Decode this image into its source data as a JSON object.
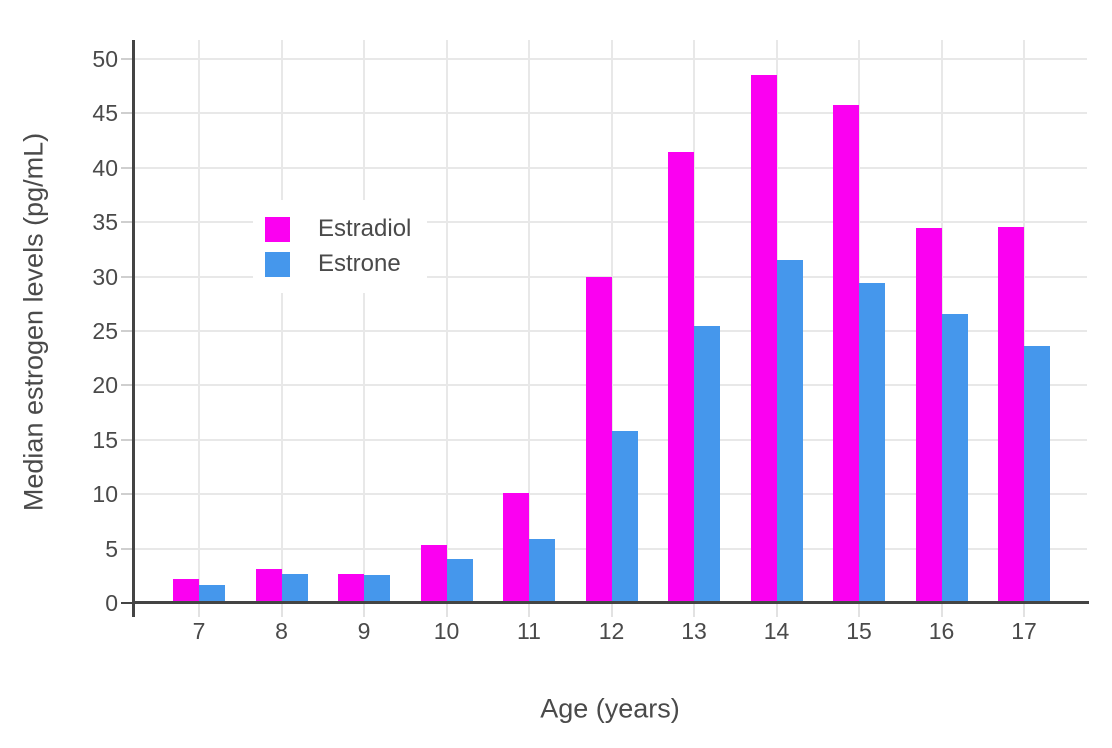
{
  "chart_data": {
    "type": "bar",
    "title": "",
    "xlabel": "Age (years)",
    "ylabel": "Median estrogen levels (pg/mL)",
    "categories": [
      "7",
      "8",
      "9",
      "10",
      "11",
      "12",
      "13",
      "14",
      "15",
      "16",
      "17"
    ],
    "series": [
      {
        "name": "Estradiol",
        "color": "#FB00F1",
        "values": [
          2.2,
          3.1,
          2.7,
          5.3,
          10.1,
          30.0,
          41.5,
          48.5,
          45.8,
          34.5,
          34.6
        ]
      },
      {
        "name": "Estrone",
        "color": "#4597EC",
        "values": [
          1.7,
          2.7,
          2.6,
          4.0,
          5.9,
          15.8,
          25.5,
          31.5,
          29.4,
          26.6,
          23.6
        ]
      }
    ],
    "yticks": [
      0,
      5,
      10,
      15,
      20,
      25,
      30,
      35,
      40,
      45,
      50
    ],
    "ylim": [
      0,
      51.75
    ],
    "grid": true,
    "legend_position": "inside-upper-left",
    "style": {
      "background": "#FFFFFF",
      "grid_color": "#E8E8E8",
      "axis_line_color": "#444444",
      "tick_mark_color": "#CFCFCF",
      "text_color": "#4A4A4A"
    }
  }
}
